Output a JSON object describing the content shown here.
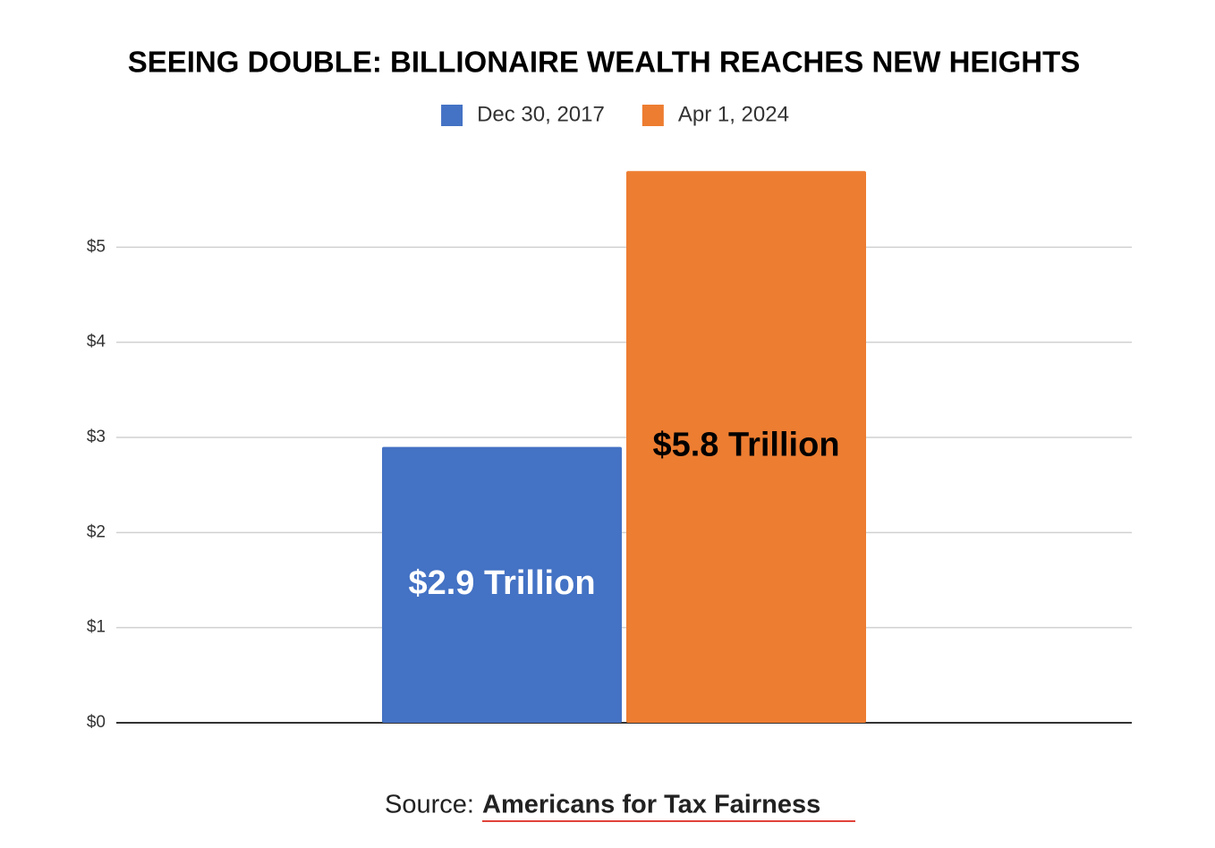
{
  "chart_data": {
    "type": "bar",
    "title": "SEEING DOUBLE: BILLIONAIRE WEALTH REACHES NEW HEIGHTS",
    "categories": [
      null
    ],
    "series": [
      {
        "name": "Dec 30, 2017",
        "color": "#4472c4",
        "label_color": "#ffffff",
        "values": [
          2.9
        ],
        "value_labels": [
          "$2.9 Trillion"
        ]
      },
      {
        "name": "Apr 1, 2024",
        "color": "#ed7d31",
        "label_color": "#000000",
        "values": [
          5.8
        ],
        "value_labels": [
          "$5.8 Trillion"
        ]
      }
    ],
    "ylim": [
      0,
      6
    ],
    "yticks": [
      {
        "value": 0,
        "label": "$0"
      },
      {
        "value": 1,
        "label": "$1"
      },
      {
        "value": 2,
        "label": "$2"
      },
      {
        "value": 3,
        "label": "$3"
      },
      {
        "value": 4,
        "label": "$4"
      },
      {
        "value": 5,
        "label": "$5"
      }
    ],
    "grid": true,
    "legend": "top"
  },
  "source": {
    "label": "Source:",
    "link": "Americans for Tax Fairness"
  }
}
